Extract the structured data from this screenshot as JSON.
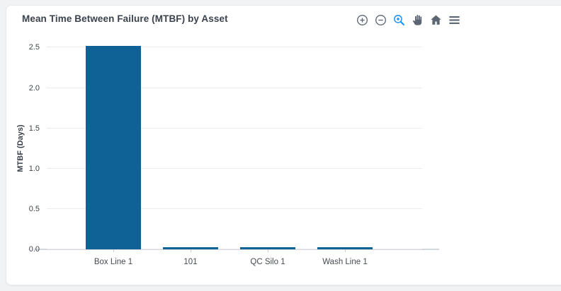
{
  "header": {
    "title": "Mean Time Between Failure (MTBF) by Asset"
  },
  "toolbar": {
    "icons": [
      "zoom-in-icon",
      "zoom-out-icon",
      "box-zoom-icon",
      "pan-icon",
      "home-icon",
      "menu-icon"
    ],
    "active_icon": "box-zoom-icon",
    "icon_color": "#5c6773",
    "active_icon_color": "#2196f3"
  },
  "chart_data": {
    "type": "bar",
    "title": "Mean Time Between Failure (MTBF) by Asset",
    "categories": [
      "Box Line 1",
      "101",
      "QC Silo 1",
      "Wash Line 1"
    ],
    "values": [
      2.52,
      0.03,
      0.03,
      0.03
    ],
    "xlabel": "",
    "ylabel": "MTBF (Days)",
    "ylim": [
      0,
      2.6
    ],
    "yticks": [
      0.0,
      0.5,
      1.0,
      1.5,
      2.0,
      2.5
    ],
    "grid": true,
    "legend": false,
    "bar_color": "#0e6296"
  },
  "colors": {
    "page_background": "#f1f2f4",
    "card_background": "#ffffff",
    "gridline": "#ececee",
    "axis_line": "#d4d7db",
    "title_text": "#3a424d",
    "tick_text": "#3f454c"
  }
}
